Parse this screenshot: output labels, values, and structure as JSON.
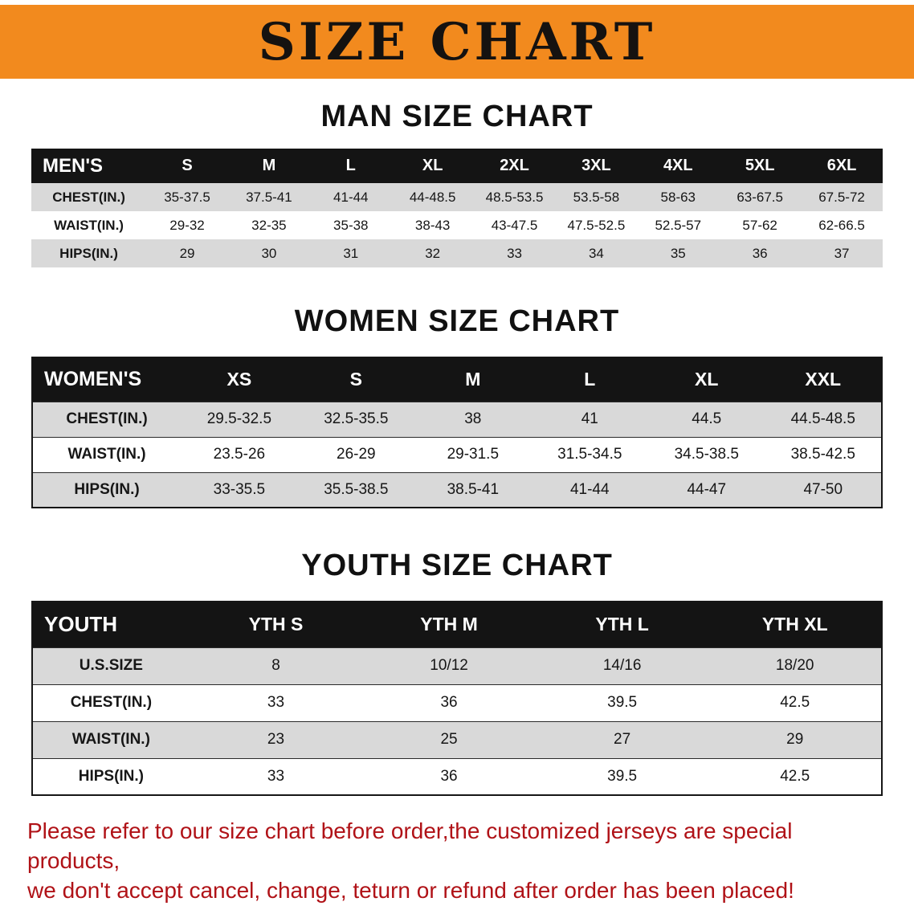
{
  "banner": {
    "title": "SIZE CHART"
  },
  "colors": {
    "banner_bg": "#F28A1E",
    "table_header_bg": "#141414",
    "table_header_text": "#FFFFFF",
    "row_stripe": "#D9D9D9",
    "note_text": "#B01217"
  },
  "chart_data": [
    {
      "type": "table",
      "title": "MAN SIZE CHART",
      "columns": [
        "MEN'S",
        "S",
        "M",
        "L",
        "XL",
        "2XL",
        "3XL",
        "4XL",
        "5XL",
        "6XL"
      ],
      "rows": [
        [
          "CHEST(IN.)",
          "35-37.5",
          "37.5-41",
          "41-44",
          "44-48.5",
          "48.5-53.5",
          "53.5-58",
          "58-63",
          "63-67.5",
          "67.5-72"
        ],
        [
          "WAIST(IN.)",
          "29-32",
          "32-35",
          "35-38",
          "38-43",
          "43-47.5",
          "47.5-52.5",
          "52.5-57",
          "57-62",
          "62-66.5"
        ],
        [
          "HIPS(IN.)",
          "29",
          "30",
          "31",
          "32",
          "33",
          "34",
          "35",
          "36",
          "37"
        ]
      ]
    },
    {
      "type": "table",
      "title": "WOMEN SIZE CHART",
      "columns": [
        "WOMEN'S",
        "XS",
        "S",
        "M",
        "L",
        "XL",
        "XXL"
      ],
      "rows": [
        [
          "CHEST(IN.)",
          "29.5-32.5",
          "32.5-35.5",
          "38",
          "41",
          "44.5",
          "44.5-48.5"
        ],
        [
          "WAIST(IN.)",
          "23.5-26",
          "26-29",
          "29-31.5",
          "31.5-34.5",
          "34.5-38.5",
          "38.5-42.5"
        ],
        [
          "HIPS(IN.)",
          "33-35.5",
          "35.5-38.5",
          "38.5-41",
          "41-44",
          "44-47",
          "47-50"
        ]
      ]
    },
    {
      "type": "table",
      "title": "YOUTH SIZE CHART",
      "columns": [
        "YOUTH",
        "YTH S",
        "YTH M",
        "YTH L",
        "YTH XL"
      ],
      "rows": [
        [
          "U.S.SIZE",
          "8",
          "10/12",
          "14/16",
          "18/20"
        ],
        [
          "CHEST(IN.)",
          "33",
          "36",
          "39.5",
          "42.5"
        ],
        [
          "WAIST(IN.)",
          "23",
          "25",
          "27",
          "29"
        ],
        [
          "HIPS(IN.)",
          "33",
          "36",
          "39.5",
          "42.5"
        ]
      ]
    }
  ],
  "note": {
    "line1": "Please refer to our size chart before order,the customized jerseys are special products,",
    "line2": "we don't accept cancel, change, teturn or refund after order has been placed!"
  }
}
